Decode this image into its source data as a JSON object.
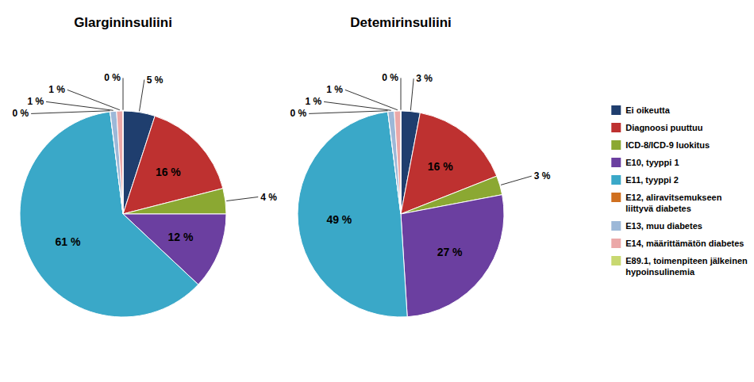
{
  "chart_data": {
    "type": "pie",
    "categories": [
      "Ei oikeutta",
      "Diagnoosi puuttuu",
      "ICD-8/ICD-9 luokitus",
      "E10, tyyppi 1",
      "E11, tyyppi 2",
      "E12, aliravitsemukseen\nliittyvä diabetes",
      "E13, muu diabetes",
      "E14, määrittämätön diabetes",
      "E89.1, toimenpiteen jälkeinen\nhypoinsulinemia"
    ],
    "colors": [
      "#1F3E6E",
      "#BE3130",
      "#8BA832",
      "#6B3FA0",
      "#3AA8C8",
      "#D07020",
      "#9CB8D8",
      "#EBA8A8",
      "#C8D870"
    ],
    "series": [
      {
        "name": "Glargininsuliini",
        "values": [
          5,
          16,
          4,
          12,
          61,
          0,
          1,
          1,
          0
        ],
        "value_labels": [
          "5 %",
          "16 %",
          "4 %",
          "12 %",
          "61 %",
          "0 %",
          "1 %",
          "1 %",
          "0 %"
        ]
      },
      {
        "name": "Detemirinsuliini",
        "values": [
          3,
          16,
          3,
          27,
          49,
          0,
          1,
          1,
          0
        ],
        "value_labels": [
          "3 %",
          "16 %",
          "3 %",
          "27 %",
          "49 %",
          "0 %",
          "1 %",
          "1 %",
          "0 %"
        ]
      }
    ],
    "data_labels": true,
    "legend": "right"
  }
}
